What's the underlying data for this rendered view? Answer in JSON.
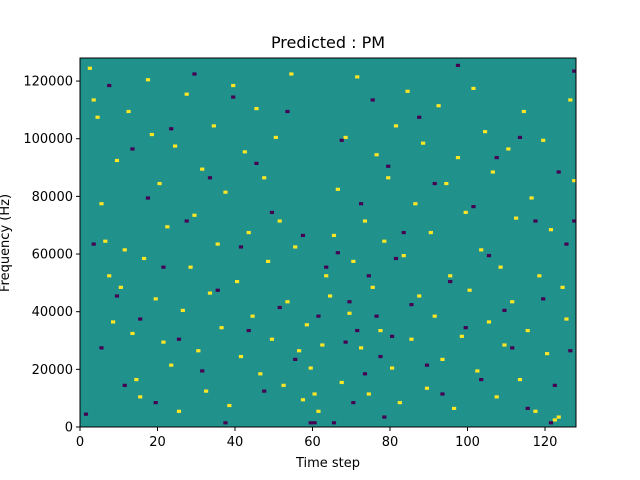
{
  "chart_data": {
    "type": "heatmap",
    "title": "Predicted : PM",
    "xlabel": "Time step",
    "ylabel": "Frequency (Hz)",
    "xlim": [
      0,
      128
    ],
    "ylim": [
      0,
      128000
    ],
    "xticks": [
      0,
      20,
      40,
      60,
      80,
      100,
      120
    ],
    "yticks": [
      0,
      20000,
      40000,
      60000,
      80000,
      100000,
      120000
    ],
    "colormap": "viridis",
    "value_levels": [
      -1,
      0,
      1
    ],
    "colors": {
      "low": "#440154",
      "mid": "#21918c",
      "high": "#fde725"
    },
    "background_value": 0,
    "grid": false,
    "cells_high": [
      [
        2,
        124
      ],
      [
        3,
        113
      ],
      [
        4,
        107
      ],
      [
        5,
        77
      ],
      [
        6,
        64
      ],
      [
        7,
        52
      ],
      [
        8,
        36
      ],
      [
        9,
        92
      ],
      [
        10,
        48
      ],
      [
        11,
        61
      ],
      [
        12,
        109
      ],
      [
        13,
        32
      ],
      [
        14,
        16
      ],
      [
        15,
        10
      ],
      [
        16,
        58
      ],
      [
        17,
        120
      ],
      [
        18,
        101
      ],
      [
        19,
        44
      ],
      [
        20,
        84
      ],
      [
        21,
        29
      ],
      [
        22,
        69
      ],
      [
        23,
        21
      ],
      [
        24,
        97
      ],
      [
        25,
        5
      ],
      [
        26,
        40
      ],
      [
        27,
        115
      ],
      [
        28,
        55
      ],
      [
        29,
        73
      ],
      [
        30,
        26
      ],
      [
        31,
        89
      ],
      [
        32,
        12
      ],
      [
        33,
        46
      ],
      [
        34,
        104
      ],
      [
        35,
        63
      ],
      [
        36,
        34
      ],
      [
        37,
        81
      ],
      [
        38,
        7
      ],
      [
        39,
        118
      ],
      [
        40,
        50
      ],
      [
        41,
        24
      ],
      [
        42,
        95
      ],
      [
        43,
        67
      ],
      [
        44,
        38
      ],
      [
        45,
        110
      ],
      [
        46,
        18
      ],
      [
        47,
        86
      ],
      [
        48,
        57
      ],
      [
        49,
        30
      ],
      [
        50,
        100
      ],
      [
        51,
        71
      ],
      [
        52,
        14
      ],
      [
        53,
        43
      ],
      [
        54,
        122
      ],
      [
        55,
        62
      ],
      [
        56,
        26
      ],
      [
        57,
        9
      ],
      [
        58,
        35
      ],
      [
        59,
        20
      ],
      [
        60,
        11
      ],
      [
        61,
        5
      ],
      [
        62,
        28
      ],
      [
        63,
        52
      ],
      [
        64,
        45
      ],
      [
        65,
        66
      ],
      [
        66,
        82
      ],
      [
        67,
        15
      ],
      [
        68,
        100
      ],
      [
        69,
        39
      ],
      [
        70,
        57
      ],
      [
        71,
        121
      ],
      [
        72,
        27
      ],
      [
        73,
        71
      ],
      [
        74,
        11
      ],
      [
        75,
        48
      ],
      [
        76,
        94
      ],
      [
        77,
        33
      ],
      [
        78,
        64
      ],
      [
        79,
        86
      ],
      [
        80,
        20
      ],
      [
        81,
        104
      ],
      [
        82,
        8
      ],
      [
        83,
        59
      ],
      [
        84,
        116
      ],
      [
        85,
        30
      ],
      [
        86,
        77
      ],
      [
        87,
        45
      ],
      [
        88,
        98
      ],
      [
        89,
        13
      ],
      [
        90,
        67
      ],
      [
        91,
        38
      ],
      [
        92,
        111
      ],
      [
        93,
        23
      ],
      [
        94,
        84
      ],
      [
        95,
        52
      ],
      [
        96,
        6
      ],
      [
        97,
        93
      ],
      [
        98,
        31
      ],
      [
        99,
        74
      ],
      [
        100,
        47
      ],
      [
        101,
        117
      ],
      [
        102,
        19
      ],
      [
        103,
        61
      ],
      [
        104,
        102
      ],
      [
        105,
        36
      ],
      [
        106,
        88
      ],
      [
        107,
        10
      ],
      [
        108,
        55
      ],
      [
        109,
        28
      ],
      [
        110,
        96
      ],
      [
        111,
        43
      ],
      [
        112,
        72
      ],
      [
        113,
        16
      ],
      [
        114,
        109
      ],
      [
        115,
        33
      ],
      [
        116,
        79
      ],
      [
        117,
        5
      ],
      [
        118,
        52
      ],
      [
        119,
        99
      ],
      [
        120,
        25
      ],
      [
        121,
        68
      ],
      [
        122,
        2
      ],
      [
        123,
        3
      ],
      [
        124,
        48
      ],
      [
        125,
        37
      ],
      [
        126,
        113
      ],
      [
        127,
        85
      ]
    ],
    "cells_low": [
      [
        1,
        4
      ],
      [
        3,
        63
      ],
      [
        5,
        27
      ],
      [
        7,
        118
      ],
      [
        9,
        45
      ],
      [
        11,
        14
      ],
      [
        13,
        96
      ],
      [
        15,
        37
      ],
      [
        17,
        79
      ],
      [
        19,
        8
      ],
      [
        21,
        55
      ],
      [
        23,
        103
      ],
      [
        25,
        30
      ],
      [
        27,
        71
      ],
      [
        29,
        122
      ],
      [
        31,
        19
      ],
      [
        33,
        86
      ],
      [
        35,
        47
      ],
      [
        37,
        1
      ],
      [
        39,
        114
      ],
      [
        41,
        62
      ],
      [
        43,
        33
      ],
      [
        45,
        91
      ],
      [
        47,
        12
      ],
      [
        49,
        74
      ],
      [
        51,
        41
      ],
      [
        53,
        109
      ],
      [
        55,
        23
      ],
      [
        57,
        66
      ],
      [
        59,
        1
      ],
      [
        60,
        1
      ],
      [
        61,
        38
      ],
      [
        63,
        55
      ],
      [
        65,
        1
      ],
      [
        66,
        60
      ],
      [
        67,
        99
      ],
      [
        68,
        29
      ],
      [
        69,
        43
      ],
      [
        70,
        8
      ],
      [
        71,
        33
      ],
      [
        72,
        77
      ],
      [
        73,
        18
      ],
      [
        74,
        52
      ],
      [
        75,
        113
      ],
      [
        76,
        38
      ],
      [
        77,
        24
      ],
      [
        78,
        3
      ],
      [
        79,
        90
      ],
      [
        80,
        31
      ],
      [
        81,
        58
      ],
      [
        83,
        67
      ],
      [
        85,
        42
      ],
      [
        87,
        107
      ],
      [
        89,
        21
      ],
      [
        91,
        84
      ],
      [
        93,
        11
      ],
      [
        95,
        50
      ],
      [
        97,
        125
      ],
      [
        99,
        34
      ],
      [
        101,
        76
      ],
      [
        103,
        16
      ],
      [
        105,
        59
      ],
      [
        107,
        93
      ],
      [
        109,
        40
      ],
      [
        111,
        27
      ],
      [
        113,
        100
      ],
      [
        115,
        6
      ],
      [
        117,
        71
      ],
      [
        119,
        44
      ],
      [
        121,
        1
      ],
      [
        122,
        14
      ],
      [
        123,
        88
      ],
      [
        125,
        63
      ],
      [
        126,
        26
      ],
      [
        127,
        123
      ],
      [
        127,
        71
      ]
    ]
  }
}
